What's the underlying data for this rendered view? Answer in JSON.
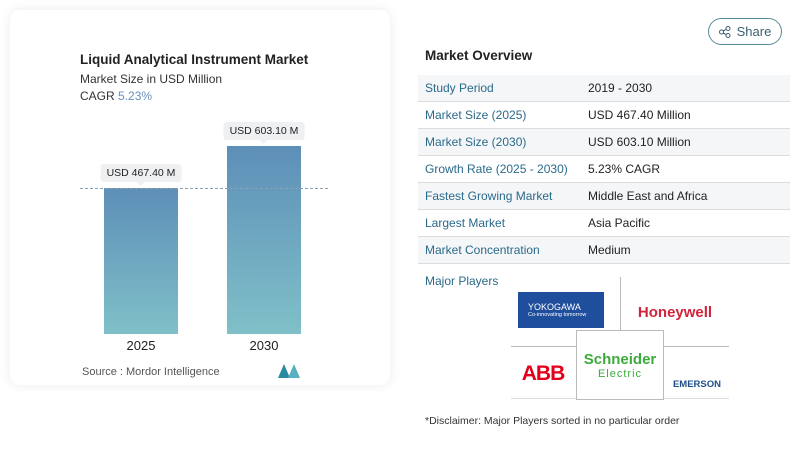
{
  "share_label": "Share",
  "chart": {
    "title": "Liquid Analytical Instrument Market",
    "subtitle": "Market Size in USD Million",
    "cagr_label": "CAGR",
    "cagr_value": "5.23%",
    "source": "Source :  Mordor Intelligence"
  },
  "chart_data": {
    "type": "bar",
    "categories": [
      "2025",
      "2030"
    ],
    "values": [
      467.4,
      603.1
    ],
    "data_labels": [
      "USD 467.40 M",
      "USD 603.10 M"
    ],
    "title": "Liquid Analytical Instrument Market",
    "ylabel": "Market Size in USD Million",
    "colors": [
      "#5e8fb8",
      "#7fc0c8"
    ]
  },
  "overview": {
    "title": "Market Overview",
    "rows": [
      {
        "k": "Study Period",
        "v": "2019 - 2030"
      },
      {
        "k": "Market Size (2025)",
        "v": "USD 467.40 Million"
      },
      {
        "k": "Market Size (2030)",
        "v": "USD 603.10 Million"
      },
      {
        "k": "Growth Rate (2025 - 2030)",
        "v": "5.23% CAGR"
      },
      {
        "k": "Fastest Growing Market",
        "v": "Middle East and Africa"
      },
      {
        "k": "Largest Market",
        "v": "Asia Pacific"
      },
      {
        "k": "Market Concentration",
        "v": "Medium"
      }
    ],
    "players_label": "Major Players",
    "players": {
      "yokogawa": "YOKOGAWA",
      "yokogawa_tag": "Co-innovating tomorrow",
      "honeywell": "Honeywell",
      "abb": "ABB",
      "schneider": "Schneider",
      "schneider2": "Electric",
      "emerson": "EMERSON"
    },
    "disclaimer": "*Disclaimer: Major Players sorted in no particular order"
  }
}
